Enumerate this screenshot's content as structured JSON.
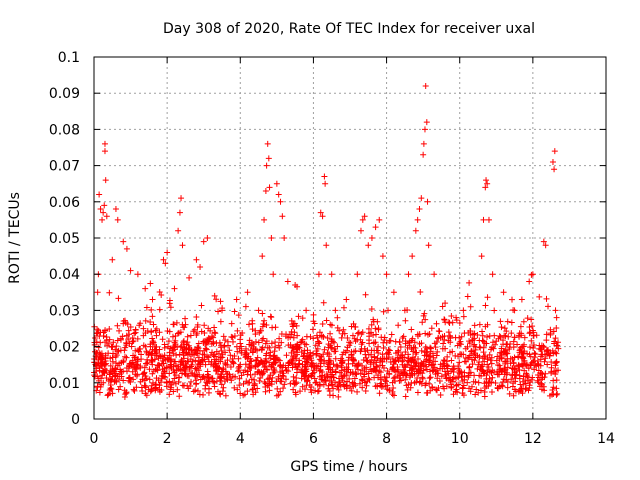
{
  "chart_data": {
    "type": "scatter",
    "title": "Day 308 of 2020, Rate Of TEC Index for receiver uxal",
    "xlabel": "GPS time / hours",
    "ylabel": "ROTI / TECUs",
    "xlim": [
      0,
      14
    ],
    "ylim": [
      0,
      0.1
    ],
    "xticks": [
      0,
      2,
      4,
      6,
      8,
      10,
      12,
      14
    ],
    "yticks": [
      0,
      0.01,
      0.02,
      0.03,
      0.04,
      0.05,
      0.06,
      0.07,
      0.08,
      0.09,
      0.1
    ],
    "xtick_labels": [
      "0",
      "2",
      "4",
      "6",
      "8",
      "10",
      "12",
      "14"
    ],
    "ytick_labels": [
      "0",
      "0.01",
      "0.02",
      "0.03",
      "0.04",
      "0.05",
      "0.06",
      "0.07",
      "0.08",
      "0.09",
      "0.1"
    ],
    "grid": true,
    "marker": "+",
    "color": "#ff0000",
    "data_x_range": [
      0,
      12.7
    ],
    "base_band": {
      "typical_min": 0.006,
      "typical_max": 0.028
    },
    "series": [
      {
        "name": "ROTI",
        "points": [
          [
            0.1,
            0.035
          ],
          [
            0.12,
            0.04
          ],
          [
            0.14,
            0.062
          ],
          [
            0.18,
            0.058
          ],
          [
            0.22,
            0.055
          ],
          [
            0.25,
            0.057
          ],
          [
            0.28,
            0.059
          ],
          [
            0.3,
            0.076
          ],
          [
            0.3,
            0.074
          ],
          [
            0.32,
            0.066
          ],
          [
            0.35,
            0.056
          ],
          [
            0.5,
            0.044
          ],
          [
            0.6,
            0.058
          ],
          [
            0.65,
            0.055
          ],
          [
            0.8,
            0.049
          ],
          [
            0.9,
            0.047
          ],
          [
            1.0,
            0.041
          ],
          [
            1.2,
            0.04
          ],
          [
            1.4,
            0.036
          ],
          [
            1.6,
            0.033
          ],
          [
            1.9,
            0.044
          ],
          [
            1.95,
            0.043
          ],
          [
            2.0,
            0.046
          ],
          [
            2.2,
            0.036
          ],
          [
            2.3,
            0.052
          ],
          [
            2.35,
            0.057
          ],
          [
            2.38,
            0.061
          ],
          [
            2.42,
            0.048
          ],
          [
            2.6,
            0.039
          ],
          [
            2.8,
            0.044
          ],
          [
            2.9,
            0.042
          ],
          [
            3.0,
            0.049
          ],
          [
            3.1,
            0.05
          ],
          [
            3.3,
            0.034
          ],
          [
            3.5,
            0.03
          ],
          [
            3.9,
            0.033
          ],
          [
            4.2,
            0.035
          ],
          [
            4.5,
            0.03
          ],
          [
            4.6,
            0.045
          ],
          [
            4.65,
            0.055
          ],
          [
            4.7,
            0.063
          ],
          [
            4.72,
            0.07
          ],
          [
            4.75,
            0.076
          ],
          [
            4.78,
            0.072
          ],
          [
            4.8,
            0.064
          ],
          [
            4.85,
            0.05
          ],
          [
            4.9,
            0.04
          ],
          [
            5.0,
            0.065
          ],
          [
            5.05,
            0.062
          ],
          [
            5.1,
            0.06
          ],
          [
            5.15,
            0.056
          ],
          [
            5.2,
            0.05
          ],
          [
            5.3,
            0.038
          ],
          [
            5.5,
            0.037
          ],
          [
            5.8,
            0.03
          ],
          [
            6.0,
            0.027
          ],
          [
            6.15,
            0.04
          ],
          [
            6.2,
            0.057
          ],
          [
            6.25,
            0.056
          ],
          [
            6.3,
            0.067
          ],
          [
            6.32,
            0.065
          ],
          [
            6.35,
            0.048
          ],
          [
            6.5,
            0.04
          ],
          [
            6.6,
            0.03
          ],
          [
            6.9,
            0.033
          ],
          [
            7.2,
            0.04
          ],
          [
            7.3,
            0.052
          ],
          [
            7.35,
            0.055
          ],
          [
            7.4,
            0.056
          ],
          [
            7.5,
            0.048
          ],
          [
            7.6,
            0.05
          ],
          [
            7.7,
            0.053
          ],
          [
            7.8,
            0.055
          ],
          [
            7.9,
            0.045
          ],
          [
            8.0,
            0.04
          ],
          [
            8.2,
            0.035
          ],
          [
            8.5,
            0.03
          ],
          [
            8.6,
            0.04
          ],
          [
            8.7,
            0.045
          ],
          [
            8.8,
            0.052
          ],
          [
            8.85,
            0.055
          ],
          [
            8.9,
            0.058
          ],
          [
            8.95,
            0.061
          ],
          [
            9.0,
            0.073
          ],
          [
            9.02,
            0.076
          ],
          [
            9.05,
            0.08
          ],
          [
            9.07,
            0.092
          ],
          [
            9.1,
            0.082
          ],
          [
            9.12,
            0.06
          ],
          [
            9.15,
            0.048
          ],
          [
            9.3,
            0.04
          ],
          [
            9.6,
            0.032
          ],
          [
            9.9,
            0.028
          ],
          [
            10.1,
            0.03
          ],
          [
            10.3,
            0.031
          ],
          [
            10.6,
            0.045
          ],
          [
            10.65,
            0.055
          ],
          [
            10.7,
            0.064
          ],
          [
            10.72,
            0.066
          ],
          [
            10.75,
            0.065
          ],
          [
            10.8,
            0.055
          ],
          [
            10.9,
            0.04
          ],
          [
            11.2,
            0.035
          ],
          [
            11.5,
            0.03
          ],
          [
            11.7,
            0.033
          ],
          [
            11.9,
            0.038
          ],
          [
            12.0,
            0.04
          ],
          [
            12.3,
            0.049
          ],
          [
            12.35,
            0.048
          ],
          [
            12.55,
            0.071
          ],
          [
            12.58,
            0.069
          ],
          [
            12.6,
            0.074
          ],
          [
            12.62,
            0.03
          ],
          [
            12.65,
            0.028
          ]
        ]
      }
    ]
  }
}
